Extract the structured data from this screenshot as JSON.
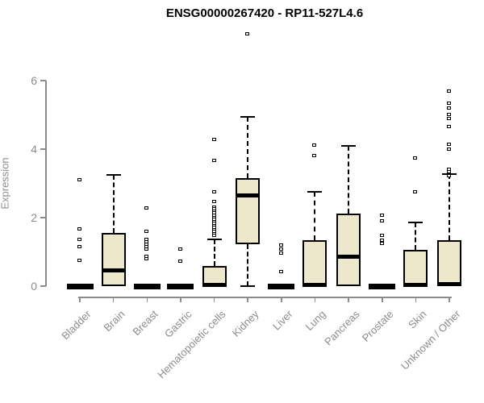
{
  "colors": {
    "box_fill": "#EDE8CC",
    "box_border": "#000000",
    "median": "#000000",
    "axis": "#8C8C8C",
    "tick_label": "#8C8C8C",
    "title": "#000000",
    "background": "#FFFFFF"
  },
  "chart_data": {
    "type": "boxplot",
    "title": "ENSG00000267420 - RP11-527L4.6",
    "ylabel": "Expression",
    "xlabel": "",
    "ylim": [
      0,
      6
    ],
    "yticks": [
      "0",
      "2",
      "4",
      "6"
    ],
    "grid": "off",
    "legend": "none",
    "categories": [
      "Bladder",
      "Brain",
      "Breast",
      "Gastric",
      "Hematopoietic cells",
      "Kidney",
      "Liver",
      "Lung",
      "Pancreas",
      "Prostate",
      "Skin",
      "Unknown / Other"
    ],
    "series": [
      {
        "label": "Bladder",
        "q1": 0,
        "median": 0,
        "q3": 0,
        "whisker_low": 0,
        "whisker_high": 0,
        "outliers": [
          3.1,
          1.65,
          1.35,
          1.15,
          0.75
        ]
      },
      {
        "label": "Brain",
        "q1": 0,
        "median": 0.45,
        "q3": 1.55,
        "whisker_low": 0,
        "whisker_high": 3.25,
        "outliers": []
      },
      {
        "label": "Breast",
        "q1": 0,
        "median": 0,
        "q3": 0,
        "whisker_low": 0,
        "whisker_high": 0,
        "outliers": [
          2.28,
          1.6,
          1.35,
          1.28,
          1.21,
          1.14,
          1.08,
          0.85,
          0.78
        ]
      },
      {
        "label": "Gastric",
        "q1": 0,
        "median": 0,
        "q3": 0,
        "whisker_low": 0,
        "whisker_high": 0,
        "outliers": [
          1.06,
          0.71
        ]
      },
      {
        "label": "Hematopoietic cells",
        "q1": 0,
        "median": 0.03,
        "q3": 0.59,
        "whisker_low": 0,
        "whisker_high": 1.36,
        "outliers": [
          4.28,
          3.67,
          2.73,
          2.45,
          2.3,
          2.24,
          2.18,
          2.12,
          2.06,
          2.0,
          1.94,
          1.88,
          1.82,
          1.76,
          1.7,
          1.64,
          1.58,
          1.52,
          1.46
        ]
      },
      {
        "label": "Kidney",
        "q1": 1.22,
        "median": 2.65,
        "q3": 3.16,
        "whisker_low": 0,
        "whisker_high": 4.94,
        "outliers": [
          7.35
        ]
      },
      {
        "label": "Liver",
        "q1": 0,
        "median": 0,
        "q3": 0,
        "whisker_low": 0,
        "whisker_high": 0,
        "outliers": [
          1.18,
          1.08,
          0.95,
          0.42
        ]
      },
      {
        "label": "Lung",
        "q1": 0,
        "median": 0.04,
        "q3": 1.34,
        "whisker_low": 0,
        "whisker_high": 2.75,
        "outliers": [
          4.1,
          3.8
        ]
      },
      {
        "label": "Pancreas",
        "q1": 0,
        "median": 0.85,
        "q3": 2.12,
        "whisker_low": 0,
        "whisker_high": 4.1,
        "outliers": []
      },
      {
        "label": "Prostate",
        "q1": 0,
        "median": 0,
        "q3": 0,
        "whisker_low": 0,
        "whisker_high": 0,
        "outliers": [
          2.05,
          1.9,
          1.46,
          1.32,
          1.24
        ]
      },
      {
        "label": "Skin",
        "q1": 0,
        "median": 0.03,
        "q3": 1.06,
        "whisker_low": 0,
        "whisker_high": 1.86,
        "outliers": [
          3.72,
          2.75
        ]
      },
      {
        "label": "Unknown / Other",
        "q1": 0,
        "median": 0.05,
        "q3": 1.34,
        "whisker_low": 0,
        "whisker_high": 3.28,
        "outliers": [
          5.69,
          5.34,
          5.18,
          5.01,
          4.89,
          4.64,
          4.12,
          3.98,
          3.41,
          3.32,
          3.22
        ]
      }
    ]
  }
}
